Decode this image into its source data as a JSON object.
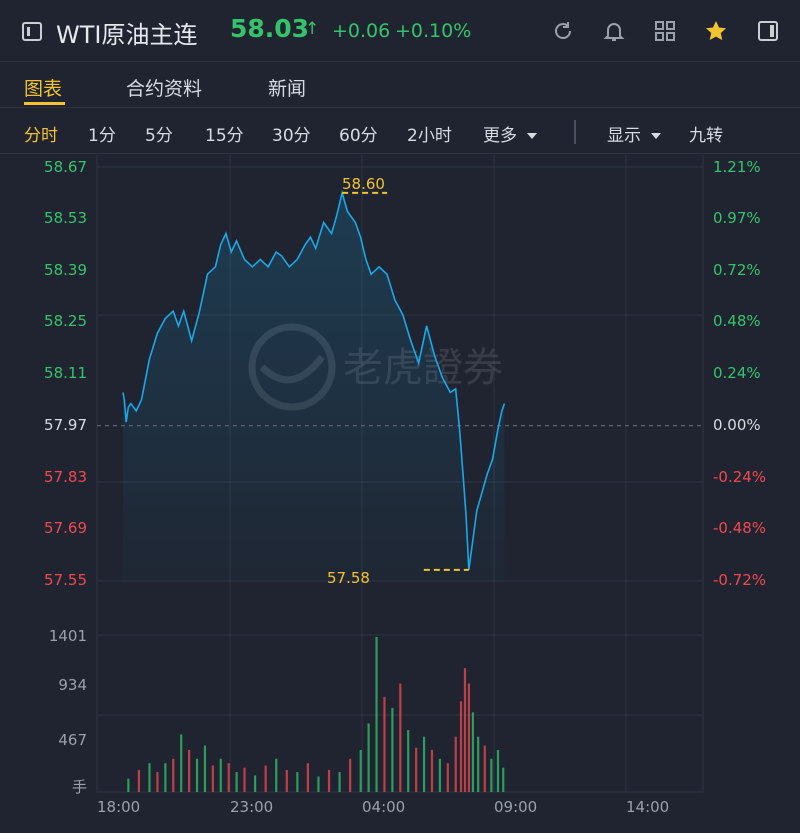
{
  "header": {
    "title": "WTI原油主连",
    "price": "58.03",
    "arrow": "↑",
    "change": "+0.06",
    "change_pct": "+0.10%",
    "icons": [
      "refresh-icon",
      "bell-icon",
      "grid-icon",
      "star-icon",
      "panel-icon"
    ]
  },
  "tabs": [
    {
      "label": "图表",
      "active": true
    },
    {
      "label": "合约资料",
      "active": false
    },
    {
      "label": "新闻",
      "active": false
    }
  ],
  "periods": [
    {
      "label": "分时",
      "active": true
    },
    {
      "label": "1分"
    },
    {
      "label": "5分"
    },
    {
      "label": "15分"
    },
    {
      "label": "30分"
    },
    {
      "label": "60分"
    },
    {
      "label": "2小时"
    },
    {
      "label": "更多"
    },
    {
      "label": "显示"
    },
    {
      "label": "九转"
    }
  ],
  "watermark": "老虎證券",
  "colors": {
    "up": "#33c46b",
    "down": "#f0494f",
    "accent": "#f2c230",
    "line": "#1aa8e8"
  },
  "chart_data": {
    "type": "line",
    "prev_close": 57.97,
    "price_axis": [
      "58.67",
      "58.53",
      "58.39",
      "58.25",
      "58.11",
      "57.97",
      "57.83",
      "57.69",
      "57.55"
    ],
    "pct_axis": [
      "1.21%",
      "0.97%",
      "0.72%",
      "0.48%",
      "0.24%",
      "0.00%",
      "-0.24%",
      "-0.48%",
      "-0.72%"
    ],
    "ylim": [
      57.55,
      58.67
    ],
    "volume_axis": [
      "1401",
      "934",
      "467",
      "手"
    ],
    "volume_max": 1401,
    "time_labels": [
      "18:00",
      "23:00",
      "04:00",
      "09:00",
      "14:00"
    ],
    "high_label": "58.60",
    "low_label": "57.58",
    "high": 58.6,
    "low": 57.58,
    "price_series": [
      [
        0,
        58.06
      ],
      [
        0.05,
        58.04
      ],
      [
        0.12,
        57.98
      ],
      [
        0.2,
        58.02
      ],
      [
        0.3,
        58.03
      ],
      [
        0.5,
        58.01
      ],
      [
        0.7,
        58.04
      ],
      [
        1.0,
        58.15
      ],
      [
        1.3,
        58.22
      ],
      [
        1.6,
        58.26
      ],
      [
        1.9,
        58.28
      ],
      [
        2.1,
        58.24
      ],
      [
        2.3,
        58.28
      ],
      [
        2.6,
        58.2
      ],
      [
        2.9,
        58.28
      ],
      [
        3.2,
        58.38
      ],
      [
        3.5,
        58.4
      ],
      [
        3.7,
        58.46
      ],
      [
        3.9,
        58.49
      ],
      [
        4.1,
        58.44
      ],
      [
        4.3,
        58.47
      ],
      [
        4.6,
        58.42
      ],
      [
        4.9,
        58.4
      ],
      [
        5.2,
        58.42
      ],
      [
        5.5,
        58.4
      ],
      [
        5.8,
        58.44
      ],
      [
        6.0,
        58.43
      ],
      [
        6.3,
        58.4
      ],
      [
        6.6,
        58.42
      ],
      [
        6.9,
        58.46
      ],
      [
        7.1,
        58.48
      ],
      [
        7.3,
        58.45
      ],
      [
        7.6,
        58.52
      ],
      [
        7.9,
        58.49
      ],
      [
        8.1,
        58.54
      ],
      [
        8.3,
        58.6
      ],
      [
        8.5,
        58.55
      ],
      [
        8.8,
        58.52
      ],
      [
        9.0,
        58.48
      ],
      [
        9.2,
        58.42
      ],
      [
        9.4,
        58.38
      ],
      [
        9.7,
        58.4
      ],
      [
        10.0,
        58.38
      ],
      [
        10.3,
        58.31
      ],
      [
        10.6,
        58.27
      ],
      [
        10.9,
        58.2
      ],
      [
        11.2,
        58.14
      ],
      [
        11.5,
        58.24
      ],
      [
        11.8,
        58.16
      ],
      [
        12.1,
        58.1
      ],
      [
        12.4,
        58.06
      ],
      [
        12.6,
        58.07
      ],
      [
        12.75,
        57.96
      ],
      [
        12.9,
        57.82
      ],
      [
        13.0,
        57.72
      ],
      [
        13.1,
        57.58
      ],
      [
        13.25,
        57.66
      ],
      [
        13.4,
        57.74
      ],
      [
        13.6,
        57.79
      ],
      [
        13.8,
        57.84
      ],
      [
        14.0,
        57.88
      ],
      [
        14.2,
        57.96
      ],
      [
        14.35,
        58.01
      ],
      [
        14.45,
        58.03
      ]
    ],
    "volume_bars": [
      [
        0.2,
        120,
        "up"
      ],
      [
        0.6,
        200,
        "down"
      ],
      [
        1.0,
        260,
        "up"
      ],
      [
        1.3,
        180,
        "down"
      ],
      [
        1.6,
        260,
        "up"
      ],
      [
        1.9,
        300,
        "down"
      ],
      [
        2.2,
        520,
        "up"
      ],
      [
        2.5,
        380,
        "down"
      ],
      [
        2.8,
        300,
        "up"
      ],
      [
        3.1,
        420,
        "up"
      ],
      [
        3.4,
        240,
        "down"
      ],
      [
        3.7,
        300,
        "up"
      ],
      [
        4.0,
        260,
        "down"
      ],
      [
        4.3,
        180,
        "up"
      ],
      [
        4.6,
        220,
        "down"
      ],
      [
        5.0,
        150,
        "up"
      ],
      [
        5.4,
        240,
        "down"
      ],
      [
        5.8,
        300,
        "up"
      ],
      [
        6.2,
        200,
        "down"
      ],
      [
        6.6,
        180,
        "up"
      ],
      [
        7.0,
        260,
        "down"
      ],
      [
        7.4,
        140,
        "up"
      ],
      [
        7.8,
        200,
        "down"
      ],
      [
        8.2,
        180,
        "up"
      ],
      [
        8.6,
        300,
        "down"
      ],
      [
        9.0,
        380,
        "up"
      ],
      [
        9.3,
        620,
        "up"
      ],
      [
        9.6,
        1401,
        "up"
      ],
      [
        9.9,
        860,
        "down"
      ],
      [
        10.2,
        760,
        "up"
      ],
      [
        10.5,
        980,
        "down"
      ],
      [
        10.8,
        560,
        "up"
      ],
      [
        11.1,
        400,
        "down"
      ],
      [
        11.4,
        500,
        "up"
      ],
      [
        11.7,
        380,
        "down"
      ],
      [
        12.0,
        300,
        "up"
      ],
      [
        12.3,
        260,
        "down"
      ],
      [
        12.6,
        500,
        "down"
      ],
      [
        12.8,
        820,
        "down"
      ],
      [
        12.95,
        1120,
        "down"
      ],
      [
        13.1,
        980,
        "down"
      ],
      [
        13.25,
        720,
        "up"
      ],
      [
        13.45,
        500,
        "up"
      ],
      [
        13.7,
        420,
        "down"
      ],
      [
        13.95,
        300,
        "up"
      ],
      [
        14.2,
        380,
        "up"
      ],
      [
        14.4,
        220,
        "up"
      ]
    ]
  }
}
